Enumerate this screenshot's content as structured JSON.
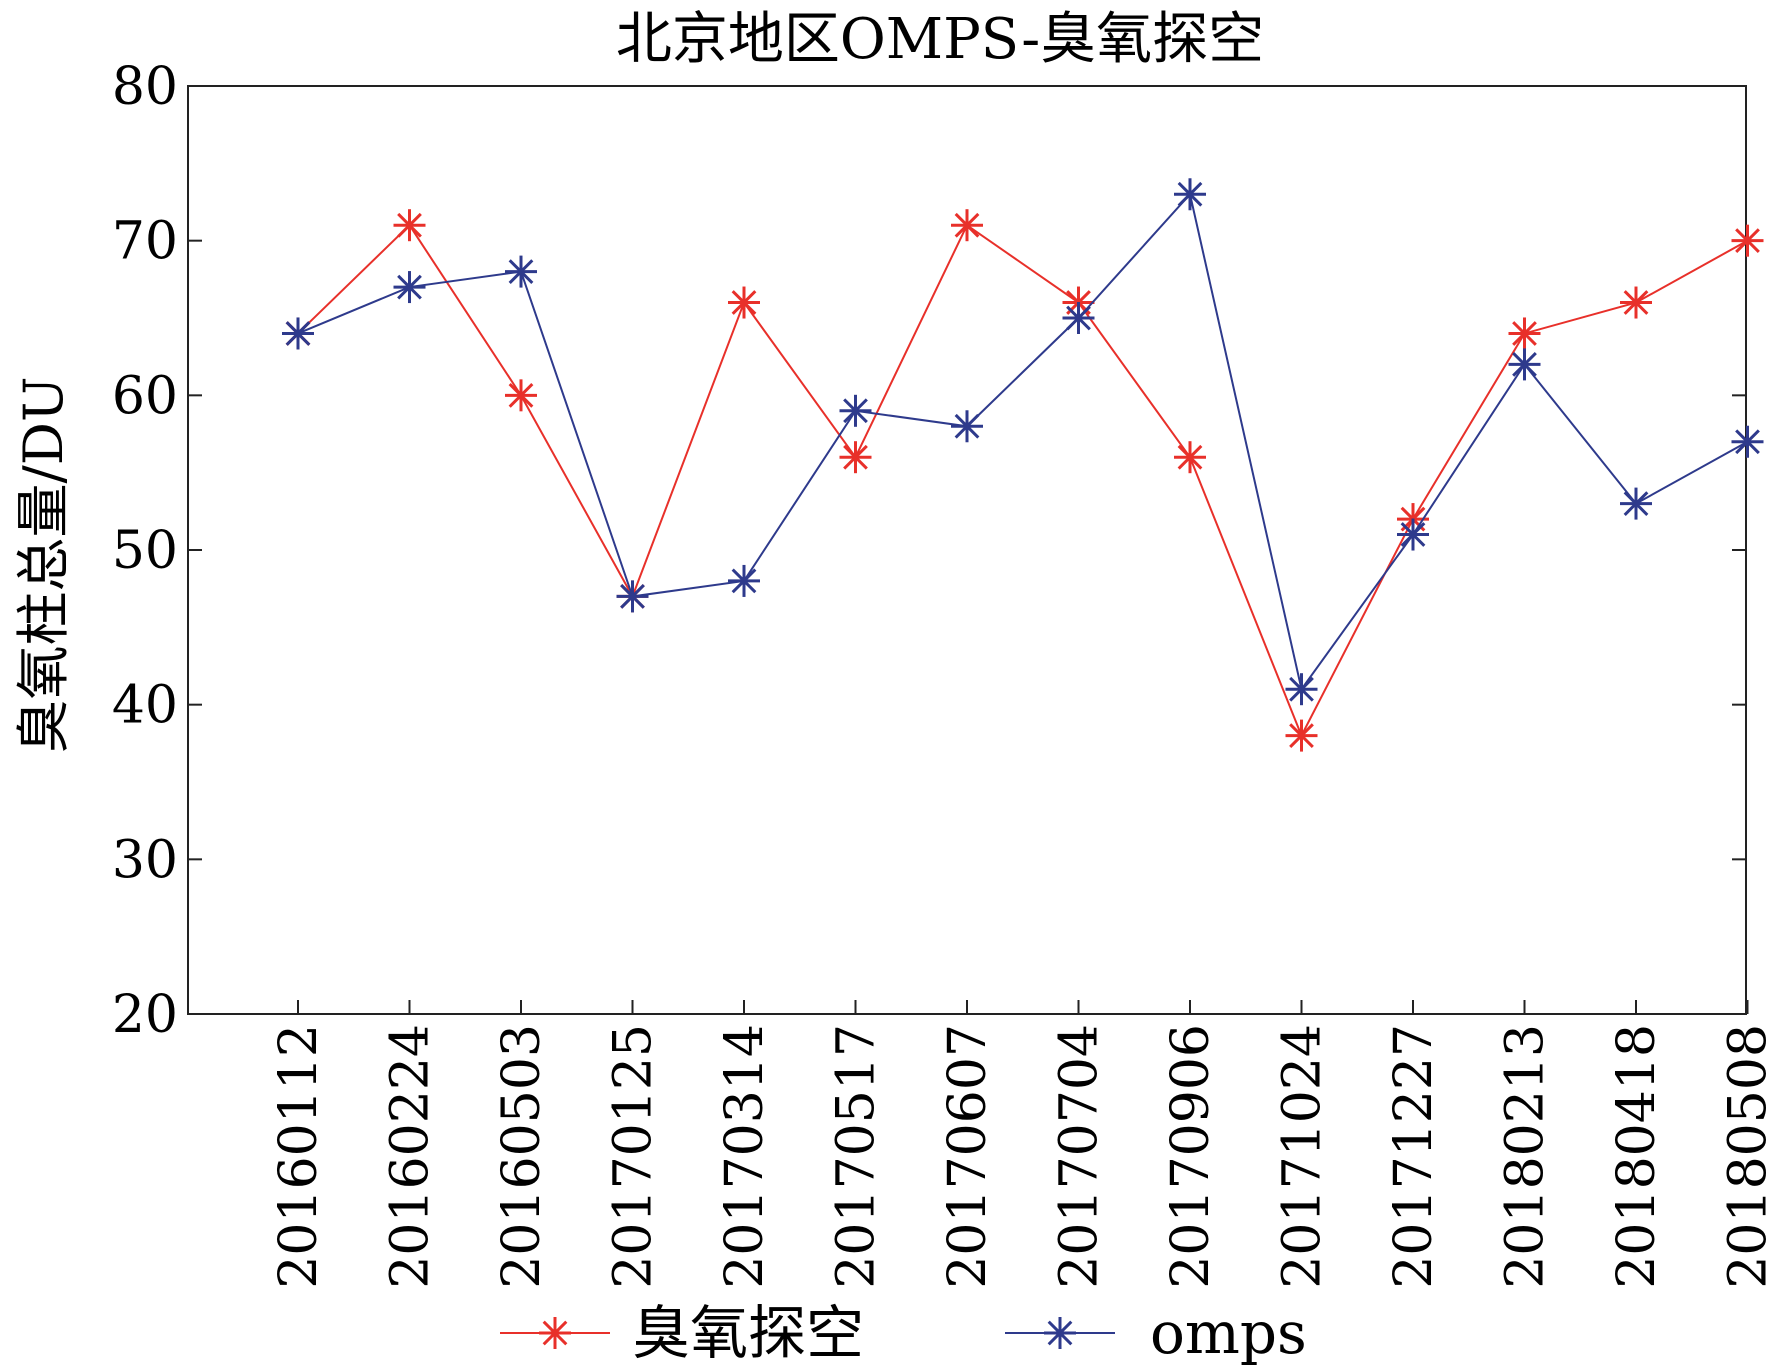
{
  "chart_data": {
    "type": "line",
    "title": "北京地区OMPS-臭氧探空",
    "xlabel": "",
    "ylabel": "臭氧柱总量/DU",
    "categories": [
      "20160112",
      "20160224",
      "20160503",
      "20170125",
      "20170314",
      "20170517",
      "20170607",
      "20170704",
      "20170906",
      "20171024",
      "20171227",
      "20180213",
      "20180418",
      "20180508"
    ],
    "ylim": [
      20,
      80
    ],
    "yticks": [
      20,
      30,
      40,
      50,
      60,
      70,
      80
    ],
    "grid": false,
    "legend": "bottom",
    "series": [
      {
        "name": "臭氧探空",
        "color": "#e8302a",
        "marker": "asterisk",
        "values": [
          64,
          71,
          60,
          47,
          66,
          56,
          71,
          66,
          56,
          38,
          52,
          64,
          66,
          70
        ]
      },
      {
        "name": "omps",
        "color": "#2e3a8c",
        "marker": "asterisk",
        "values": [
          64,
          67,
          68,
          47,
          48,
          59,
          58,
          65,
          73,
          41,
          51,
          62,
          53,
          57
        ]
      }
    ]
  }
}
